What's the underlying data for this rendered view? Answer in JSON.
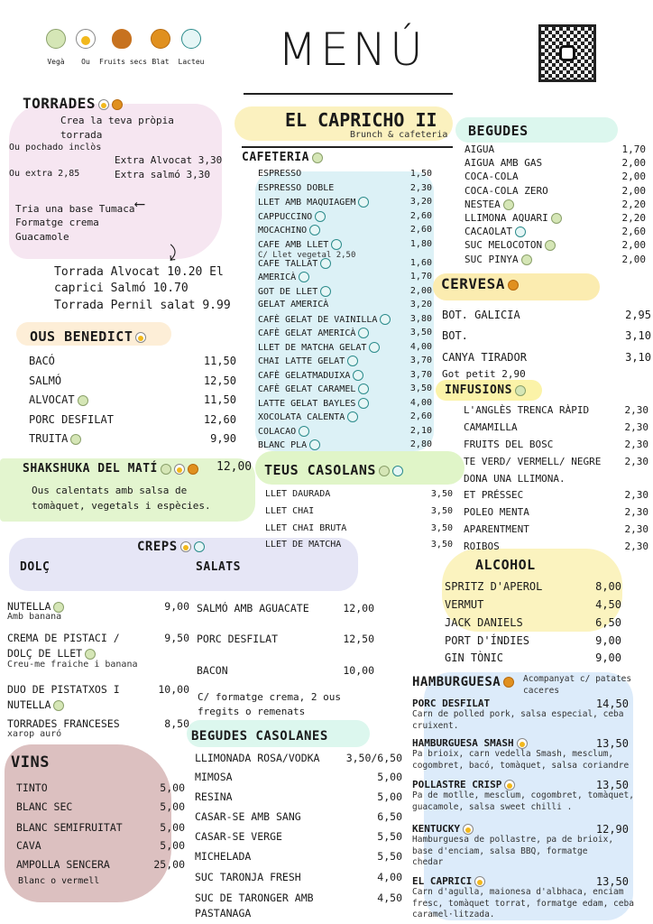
{
  "legend": [
    {
      "label": "Vegà",
      "icon": "vega"
    },
    {
      "label": "Ou",
      "icon": "ou"
    },
    {
      "label": "Fruits secs",
      "icon": "nuts"
    },
    {
      "label": "Blat",
      "icon": "blat"
    },
    {
      "label": "Lacteu",
      "icon": "lacteu"
    }
  ],
  "title": "MENÚ",
  "brand": {
    "name": "EL CAPRICHO II",
    "subtitle": "Brunch & cafeteria"
  },
  "torrades": {
    "title": "TORRADES",
    "lines": [
      "Crea la teva pròpia",
      "torrada",
      "Ou pochado inclòs",
      "Extra Alvocat 3,30",
      "Ou extra 2,85",
      "Extra salmó 3,30",
      "Tria una base Tumaca",
      "Formatge crema",
      "Guacamole",
      "Torrada Alvocat 10.20 El",
      "caprici Salmó 10.70",
      "Torrada Pernil salat 9.99"
    ]
  },
  "cafeteria": {
    "title": "CAFETERIA",
    "items": [
      {
        "name": "ESPRESSO",
        "price": "1,50"
      },
      {
        "name": "ESPRESSO DOBLE",
        "price": "2,30"
      },
      {
        "name": "LLET AMB MAQUIAGEM",
        "price": "3,20",
        "icon": "lacteu"
      },
      {
        "name": "CAPPUCCINO",
        "price": "2,60",
        "icon": "lacteu"
      },
      {
        "name": "MOCACHINO",
        "price": "2,60",
        "icon": "lacteu"
      },
      {
        "name": "CAFE AMB LLET",
        "price": "1,80",
        "icon": "lacteu",
        "note": "C/ Llet vegetal 2,50"
      },
      {
        "name": "CAFE TALLAT",
        "price": "1,60",
        "icon": "lacteu"
      },
      {
        "name": "AMERICÀ",
        "price": "1,70",
        "icon": "lacteu"
      },
      {
        "name": "GOT DE LLET",
        "price": "2,00",
        "icon": "lacteu"
      },
      {
        "name": "GELAT AMERICÀ",
        "price": "3,20"
      },
      {
        "name": "CAFÈ GELAT DE VAINILLA",
        "price": "3,80",
        "icon": "lacteu"
      },
      {
        "name": "CAFÈ GELAT AMERICÀ",
        "price": "3,50",
        "icon": "lacteu"
      },
      {
        "name": "LLET DE MATCHA GELAT",
        "price": "4,00",
        "icon": "lacteu"
      },
      {
        "name": "CHAI LATTE GELAT",
        "price": "3,70",
        "icon": "lacteu"
      },
      {
        "name": "CAFÈ GELATMADUIXA",
        "price": "3,70",
        "icon": "lacteu"
      },
      {
        "name": "CAFÈ GELAT CARAMEL",
        "price": "3,50",
        "icon": "lacteu"
      },
      {
        "name": "LATTE GELAT BAYLES",
        "price": "4,00",
        "icon": "lacteu"
      },
      {
        "name": "XOCOLATA CALENTA",
        "price": "2,60",
        "icon": "lacteu"
      },
      {
        "name": "COLACAO",
        "price": "2,10",
        "icon": "lacteu"
      },
      {
        "name": "BLANC PLA",
        "price": "2,80",
        "icon": "lacteu"
      }
    ]
  },
  "begudes": {
    "title": "BEGUDES",
    "items": [
      {
        "name": "AIGUA",
        "price": "1,70"
      },
      {
        "name": "AIGUA AMB GAS",
        "price": "2,00"
      },
      {
        "name": "COCA-COLA",
        "price": "2,00"
      },
      {
        "name": "COCA-COLA ZERO",
        "price": "2,00"
      },
      {
        "name": "NESTEA",
        "price": "2,20",
        "icon": "vega"
      },
      {
        "name": "LLIMONA AQUARI",
        "price": "2,20",
        "icon": "vega"
      },
      {
        "name": "CACAOLAT",
        "price": "2,60",
        "icon": "lacteu"
      },
      {
        "name": "SUC MELOCOTON",
        "price": "2,00",
        "icon": "vega"
      },
      {
        "name": "SUC PINYA",
        "price": "2,00",
        "icon": "vega"
      }
    ]
  },
  "cervesa": {
    "title": "CERVESA",
    "items": [
      {
        "name": "BOT. GALICIA",
        "price": "2,95"
      },
      {
        "name": "BOT.",
        "price": "3,10"
      },
      {
        "name": "CANYA TIRADOR",
        "price": "3,10"
      }
    ],
    "note": "Got petit 2,90"
  },
  "infusions": {
    "title": "INFUSIONS",
    "items": [
      {
        "name": "L'ANGLÈS TRENCA RÀPID",
        "price": "2,30"
      },
      {
        "name": "CAMAMILLA",
        "price": "2,30"
      },
      {
        "name": "FRUITS DEL BOSC",
        "price": "2,30"
      },
      {
        "name": "TE VERD/ VERMELL/ NEGRE",
        "price": "2,30"
      },
      {
        "name": "DONA UNA LLIMONA.",
        "price": ""
      },
      {
        "name": "ET PRÉSSEC",
        "price": "2,30"
      },
      {
        "name": "POLEO MENTA",
        "price": "2,30"
      },
      {
        "name": "APARENTMENT",
        "price": "2,30"
      },
      {
        "name": "ROIBOS",
        "price": "2,30"
      }
    ]
  },
  "ous": {
    "title": "OUS BENEDICT",
    "items": [
      {
        "name": "BACÓ",
        "price": "11,50"
      },
      {
        "name": "SALMÓ",
        "price": "12,50"
      },
      {
        "name": "ALVOCAT",
        "price": "11,50",
        "icon": "vega"
      },
      {
        "name": "PORC DESFILAT",
        "price": "12,60"
      },
      {
        "name": "TRUITA",
        "price": "9,90",
        "icon": "vega"
      }
    ]
  },
  "shakshuka": {
    "title": "SHAKSHUKA DEL MATÍ",
    "price": "12,00",
    "desc": [
      "Ous calentats amb salsa de",
      "tomàquet, vegetals i espècies."
    ]
  },
  "casolans": {
    "title": "TEUS CASOLANS",
    "items": [
      {
        "name": "LLET DAURADA",
        "price": "3,50"
      },
      {
        "name": "LLET CHAI",
        "price": "3,50"
      },
      {
        "name": "LLET CHAI BRUTA",
        "price": "3,50"
      },
      {
        "name": "LLET DE MATCHA",
        "price": "3,50"
      }
    ]
  },
  "creps": {
    "title": "CREPS",
    "dolc_label": "DOLÇ",
    "salats_label": "SALATS",
    "dolc": [
      {
        "name": "NUTELLA",
        "icon": "vega",
        "price": "9,00",
        "note": "Amb banana"
      },
      {
        "name": "CREMA DE PISTACI /",
        "price": "9,50",
        "name2": "DOLÇ DE LLET",
        "icon": "vega",
        "note": "Creu-me fraiche i banana"
      },
      {
        "name": "DUO DE PISTATXOS I",
        "price": "10,00",
        "name2": "NUTELLA",
        "icon": "vega"
      },
      {
        "name": "TORRADES FRANCESES",
        "price": "8,50",
        "note": "xarop auró"
      }
    ],
    "salats": [
      {
        "name": "SALMÓ AMB AGUACATE",
        "price": "12,00"
      },
      {
        "name": "PORC DESFILAT",
        "price": "12,50"
      },
      {
        "name": "BACON",
        "price": "10,00"
      }
    ],
    "salats_note": [
      "C/ formatge crema, 2 ous",
      "fregits o remenats"
    ]
  },
  "casolanes": {
    "title": "BEGUDES CASOLANES",
    "items": [
      {
        "name": "LLIMONADA ROSA/VODKA",
        "price": "3,50/6,50"
      },
      {
        "name": "MIMOSA",
        "price": "5,00"
      },
      {
        "name": "RESINA",
        "price": "5,00"
      },
      {
        "name": "CASAR-SE AMB SANG",
        "price": "6,50"
      },
      {
        "name": "CASAR-SE VERGE",
        "price": "5,50"
      },
      {
        "name": "MICHELADA",
        "price": "5,50"
      },
      {
        "name": "SUC TARONJA FRESH",
        "price": "4,00"
      },
      {
        "name": "SUC DE TARONGER AMB",
        "price": "4,50",
        "name2": "PASTANAGA"
      }
    ]
  },
  "vins": {
    "title": "VINS",
    "items": [
      {
        "name": "TINTO",
        "price": "5,00"
      },
      {
        "name": "BLANC SEC",
        "price": "5,00"
      },
      {
        "name": "BLANC SEMIFRUITAT",
        "price": "5,00"
      },
      {
        "name": "CAVA",
        "price": "5,00"
      },
      {
        "name": "AMPOLLA SENCERA",
        "price": "25,00"
      }
    ],
    "note": "Blanc o vermell"
  },
  "alcohol": {
    "title": "ALCOHOL",
    "items": [
      {
        "name": "SPRITZ D'APEROL",
        "price": "8,00"
      },
      {
        "name": "VERMUT",
        "price": "4,50"
      },
      {
        "name": "JACK DANIELS",
        "price": "6,50"
      },
      {
        "name": "PORT D'ÍNDIES",
        "price": "9,00"
      },
      {
        "name": "GIN TÒNIC",
        "price": "9,00"
      }
    ]
  },
  "hamburguesa": {
    "title": "HAMBURGUESA",
    "note": [
      "Acompanyat c/ patates",
      "caceres"
    ],
    "items": [
      {
        "name": "PORC DESFILAT",
        "price": "14,50",
        "desc": [
          "Carn de polled pork, salsa especial, ceba",
          "cruixent."
        ]
      },
      {
        "name": "HAMBURGUESA SMASH",
        "icon": "ou",
        "price": "13,50",
        "desc": [
          "Pa brioix, carn vedella Smash, mesclum,",
          "cogombret, bacó, tomàquet, salsa coriandre"
        ]
      },
      {
        "name": "POLLASTRE CRISP",
        "icon": "ou",
        "price": "13,50",
        "desc": [
          "Pa de motlle, mesclum, cogombret, tomàquet,",
          "guacamole, salsa sweet chilli ."
        ]
      },
      {
        "name": "KENTUCKY",
        "icon": "ou",
        "price": "12,90",
        "desc": [
          "Hamburguesa de pollastre, pa de brioix,",
          "base d'enciam, salsa BBQ, formatge",
          "chedar"
        ]
      },
      {
        "name": "EL CAPRICI",
        "icon": "ou",
        "price": "13,50",
        "desc": [
          "Carn d'agulla, maionesa d'albhaca, enciam",
          "fresc, tomàquet torrat, formatge edam, ceba",
          "caramel·litzada."
        ]
      }
    ]
  },
  "colors": {
    "pink": "#f6e6f1",
    "yellow": "#fbf1bf",
    "blue": "#dcf1f6",
    "mint": "#dcf7ee",
    "green": "#e3f5cf",
    "lavender": "#e6e6f6",
    "rose": "#dcc0c0",
    "lightblue": "#dcebfa"
  }
}
